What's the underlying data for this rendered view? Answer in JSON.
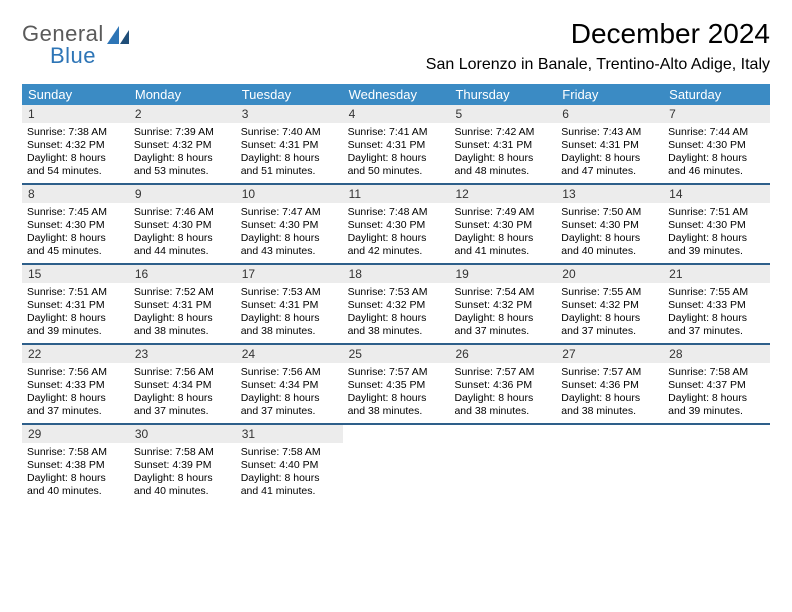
{
  "brand": {
    "text1": "General",
    "text2": "Blue"
  },
  "title": "December 2024",
  "location": "San Lorenzo in Banale, Trentino-Alto Adige, Italy",
  "colors": {
    "header_bg": "#3b8bc4",
    "week_border": "#2e5f8a",
    "daynum_bg": "#ececec",
    "logo_gray": "#5a5a5a",
    "logo_blue": "#2e75b6"
  },
  "dow": [
    "Sunday",
    "Monday",
    "Tuesday",
    "Wednesday",
    "Thursday",
    "Friday",
    "Saturday"
  ],
  "weeks": [
    [
      {
        "n": "1",
        "sr": "7:38 AM",
        "ss": "4:32 PM",
        "dl": "8 hours and 54 minutes."
      },
      {
        "n": "2",
        "sr": "7:39 AM",
        "ss": "4:32 PM",
        "dl": "8 hours and 53 minutes."
      },
      {
        "n": "3",
        "sr": "7:40 AM",
        "ss": "4:31 PM",
        "dl": "8 hours and 51 minutes."
      },
      {
        "n": "4",
        "sr": "7:41 AM",
        "ss": "4:31 PM",
        "dl": "8 hours and 50 minutes."
      },
      {
        "n": "5",
        "sr": "7:42 AM",
        "ss": "4:31 PM",
        "dl": "8 hours and 48 minutes."
      },
      {
        "n": "6",
        "sr": "7:43 AM",
        "ss": "4:31 PM",
        "dl": "8 hours and 47 minutes."
      },
      {
        "n": "7",
        "sr": "7:44 AM",
        "ss": "4:30 PM",
        "dl": "8 hours and 46 minutes."
      }
    ],
    [
      {
        "n": "8",
        "sr": "7:45 AM",
        "ss": "4:30 PM",
        "dl": "8 hours and 45 minutes."
      },
      {
        "n": "9",
        "sr": "7:46 AM",
        "ss": "4:30 PM",
        "dl": "8 hours and 44 minutes."
      },
      {
        "n": "10",
        "sr": "7:47 AM",
        "ss": "4:30 PM",
        "dl": "8 hours and 43 minutes."
      },
      {
        "n": "11",
        "sr": "7:48 AM",
        "ss": "4:30 PM",
        "dl": "8 hours and 42 minutes."
      },
      {
        "n": "12",
        "sr": "7:49 AM",
        "ss": "4:30 PM",
        "dl": "8 hours and 41 minutes."
      },
      {
        "n": "13",
        "sr": "7:50 AM",
        "ss": "4:30 PM",
        "dl": "8 hours and 40 minutes."
      },
      {
        "n": "14",
        "sr": "7:51 AM",
        "ss": "4:30 PM",
        "dl": "8 hours and 39 minutes."
      }
    ],
    [
      {
        "n": "15",
        "sr": "7:51 AM",
        "ss": "4:31 PM",
        "dl": "8 hours and 39 minutes."
      },
      {
        "n": "16",
        "sr": "7:52 AM",
        "ss": "4:31 PM",
        "dl": "8 hours and 38 minutes."
      },
      {
        "n": "17",
        "sr": "7:53 AM",
        "ss": "4:31 PM",
        "dl": "8 hours and 38 minutes."
      },
      {
        "n": "18",
        "sr": "7:53 AM",
        "ss": "4:32 PM",
        "dl": "8 hours and 38 minutes."
      },
      {
        "n": "19",
        "sr": "7:54 AM",
        "ss": "4:32 PM",
        "dl": "8 hours and 37 minutes."
      },
      {
        "n": "20",
        "sr": "7:55 AM",
        "ss": "4:32 PM",
        "dl": "8 hours and 37 minutes."
      },
      {
        "n": "21",
        "sr": "7:55 AM",
        "ss": "4:33 PM",
        "dl": "8 hours and 37 minutes."
      }
    ],
    [
      {
        "n": "22",
        "sr": "7:56 AM",
        "ss": "4:33 PM",
        "dl": "8 hours and 37 minutes."
      },
      {
        "n": "23",
        "sr": "7:56 AM",
        "ss": "4:34 PM",
        "dl": "8 hours and 37 minutes."
      },
      {
        "n": "24",
        "sr": "7:56 AM",
        "ss": "4:34 PM",
        "dl": "8 hours and 37 minutes."
      },
      {
        "n": "25",
        "sr": "7:57 AM",
        "ss": "4:35 PM",
        "dl": "8 hours and 38 minutes."
      },
      {
        "n": "26",
        "sr": "7:57 AM",
        "ss": "4:36 PM",
        "dl": "8 hours and 38 minutes."
      },
      {
        "n": "27",
        "sr": "7:57 AM",
        "ss": "4:36 PM",
        "dl": "8 hours and 38 minutes."
      },
      {
        "n": "28",
        "sr": "7:58 AM",
        "ss": "4:37 PM",
        "dl": "8 hours and 39 minutes."
      }
    ],
    [
      {
        "n": "29",
        "sr": "7:58 AM",
        "ss": "4:38 PM",
        "dl": "8 hours and 40 minutes."
      },
      {
        "n": "30",
        "sr": "7:58 AM",
        "ss": "4:39 PM",
        "dl": "8 hours and 40 minutes."
      },
      {
        "n": "31",
        "sr": "7:58 AM",
        "ss": "4:40 PM",
        "dl": "8 hours and 41 minutes."
      },
      null,
      null,
      null,
      null
    ]
  ],
  "labels": {
    "sunrise": "Sunrise:",
    "sunset": "Sunset:",
    "daylight": "Daylight:"
  }
}
